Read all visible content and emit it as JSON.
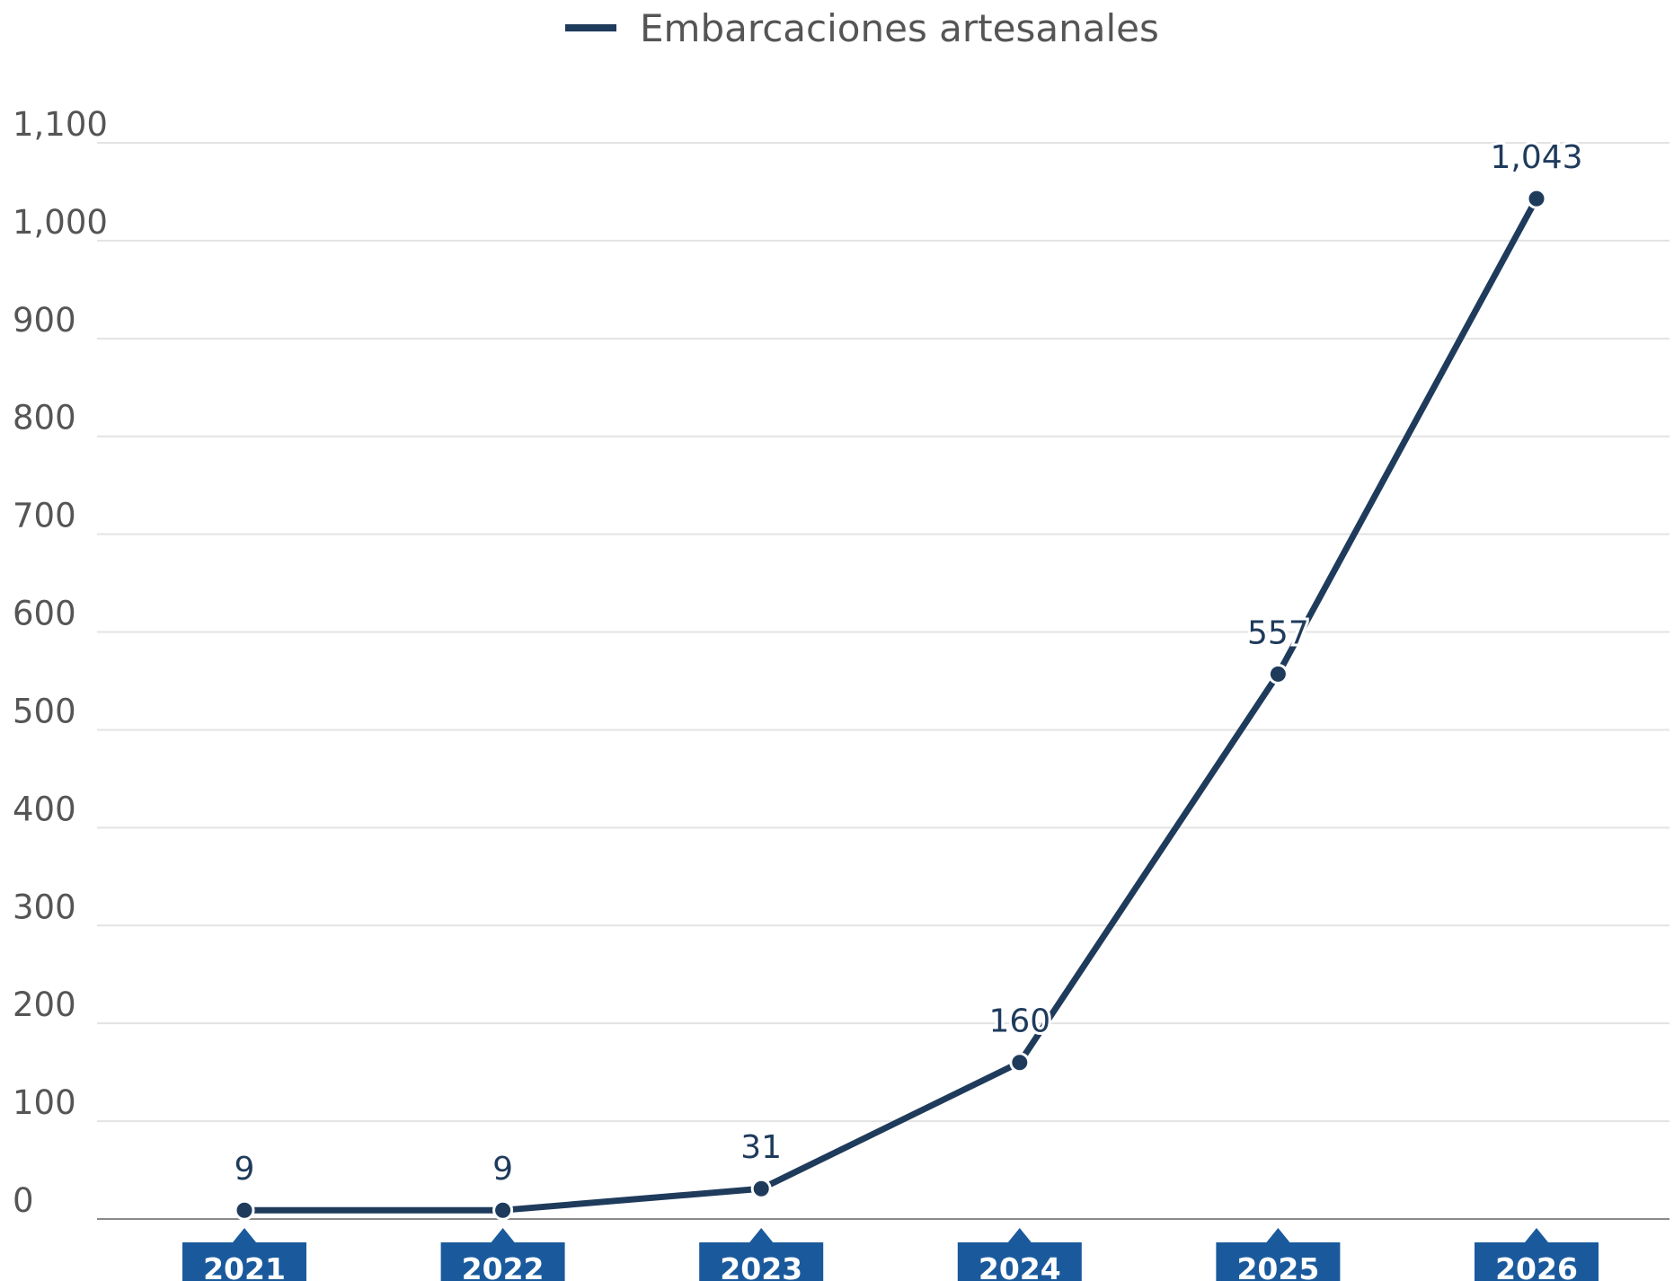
{
  "chart_data": {
    "type": "line",
    "categories": [
      "2021",
      "2022",
      "2023",
      "2024",
      "2025",
      "2026"
    ],
    "series": [
      {
        "name": "Embarcaciones artesanales",
        "values": [
          9,
          9,
          31,
          160,
          557,
          1043
        ],
        "value_labels": [
          "9",
          "9",
          "31",
          "160",
          "557",
          "1,043"
        ]
      }
    ],
    "y_ticks": [
      0,
      100,
      200,
      300,
      400,
      500,
      600,
      700,
      800,
      900,
      1000,
      1100
    ],
    "y_tick_labels": [
      "0",
      "100",
      "200",
      "300",
      "400",
      "500",
      "600",
      "700",
      "800",
      "900",
      "1,000",
      "1,100"
    ],
    "ylim": [
      0,
      1100
    ],
    "grid": true,
    "legend_position": "top-center",
    "colors": {
      "line": "#1f3b5c",
      "x_tick_background": "#1a5a9c",
      "grid": "#e3e3e3",
      "axis": "#8a8a8a"
    }
  }
}
